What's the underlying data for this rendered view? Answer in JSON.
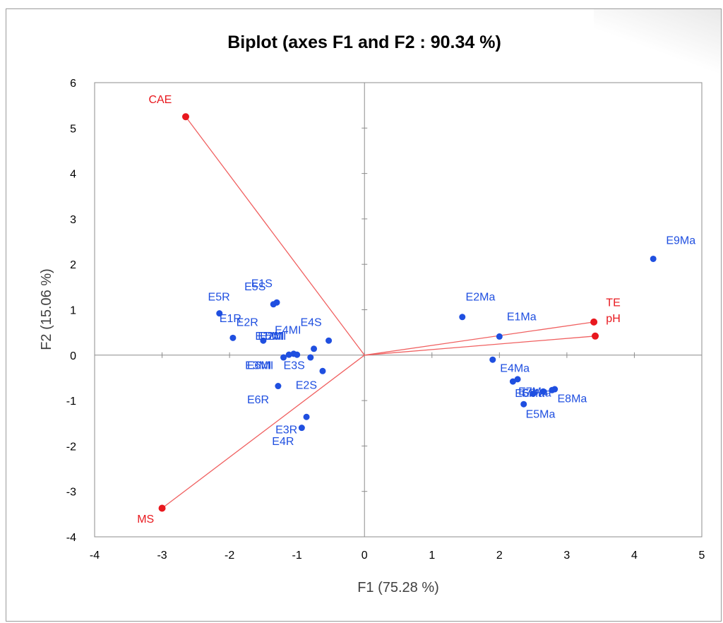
{
  "chart_data": {
    "type": "scatter",
    "title": "Biplot (axes F1 and F2 : 90.34 %)",
    "xlabel": "F1 (75.28 %)",
    "ylabel": "F2 (15.06 %)",
    "xlim": [
      -4,
      5
    ],
    "ylim": [
      -4,
      6
    ],
    "xticks": [
      "-4",
      "-3",
      "-2",
      "-1",
      "0",
      "1",
      "2",
      "3",
      "4",
      "5"
    ],
    "yticks": [
      "-4",
      "-3",
      "-2",
      "-1",
      "0",
      "1",
      "2",
      "3",
      "4",
      "5",
      "6"
    ],
    "grid": false,
    "colors": {
      "observations": "#1f4fe0",
      "variables": "#e8181e",
      "vectors": "#f06060",
      "axes": "#8c8c8c"
    },
    "variables": [
      {
        "label": "CAE",
        "x": -2.65,
        "y": 5.25
      },
      {
        "label": "MS",
        "x": -3.0,
        "y": -3.37
      },
      {
        "label": "TE",
        "x": 3.4,
        "y": 0.73
      },
      {
        "label": "pH",
        "x": 3.42,
        "y": 0.42
      }
    ],
    "observations": [
      {
        "label": "E9Ma",
        "x": 4.28,
        "y": 2.12
      },
      {
        "label": "E2Ma",
        "x": 1.45,
        "y": 0.84
      },
      {
        "label": "E1Ma",
        "x": 2.0,
        "y": 0.41
      },
      {
        "label": "E4Ma",
        "x": 2.2,
        "y": -0.58
      },
      {
        "label": "E8Ma",
        "x": 2.82,
        "y": -0.75
      },
      {
        "label": "E5Ma",
        "x": 2.36,
        "y": -1.08
      },
      {
        "label": "E6Ma",
        "x": 2.27,
        "y": -0.53
      },
      {
        "label": "E7Ma",
        "x": 2.5,
        "y": -0.85
      },
      {
        "label": "E3Ma",
        "x": 2.65,
        "y": -0.8
      },
      {
        "label": "",
        "x": 1.9,
        "y": -0.1
      },
      {
        "label": "",
        "x": 2.78,
        "y": -0.77
      },
      {
        "label": "E5R",
        "x": -2.15,
        "y": 0.92
      },
      {
        "label": "E1R",
        "x": -1.95,
        "y": 0.38
      },
      {
        "label": "E2R",
        "x": -1.5,
        "y": 0.32
      },
      {
        "label": "E1S",
        "x": -1.3,
        "y": 1.16
      },
      {
        "label": "E5S",
        "x": -1.35,
        "y": 1.12
      },
      {
        "label": "E4S",
        "x": -0.53,
        "y": 0.32
      },
      {
        "label": "E4MI",
        "x": -0.75,
        "y": 0.14
      },
      {
        "label": "E1MI",
        "x": -1.05,
        "y": 0.03
      },
      {
        "label": "E5MI",
        "x": -1.12,
        "y": 0.01
      },
      {
        "label": "E3MI",
        "x": -1.2,
        "y": -0.05
      },
      {
        "label": "E2MI",
        "x": -1.0,
        "y": 0.01
      },
      {
        "label": "E3S",
        "x": -0.8,
        "y": -0.05
      },
      {
        "label": "E2S",
        "x": -0.62,
        "y": -0.35
      },
      {
        "label": "E6R",
        "x": -1.28,
        "y": -0.68
      },
      {
        "label": "E3R",
        "x": -0.86,
        "y": -1.36
      },
      {
        "label": "E4R",
        "x": -0.93,
        "y": -1.6
      }
    ],
    "label_positions": [
      {
        "text": "E9Ma",
        "x": 4.47,
        "y": 2.45
      },
      {
        "text": "E2Ma",
        "x": 1.5,
        "y": 1.2
      },
      {
        "text": "E1Ma",
        "x": 2.11,
        "y": 0.77
      },
      {
        "text": "E4Ma",
        "x": 2.01,
        "y": -0.37
      },
      {
        "text": "E8Ma",
        "x": 2.86,
        "y": -1.04
      },
      {
        "text": "E5Ma",
        "x": 2.39,
        "y": -1.38
      },
      {
        "text": "E6Ma",
        "x": 2.23,
        "y": -0.92
      },
      {
        "text": "E7Ma",
        "x": 2.28,
        "y": -0.88
      },
      {
        "text": "E3Ma",
        "x": 2.33,
        "y": -0.91
      },
      {
        "text": "E5R",
        "x": -2.32,
        "y": 1.2
      },
      {
        "text": "E1R",
        "x": -2.15,
        "y": 0.73
      },
      {
        "text": "E2R",
        "x": -1.9,
        "y": 0.64
      },
      {
        "text": "E1S",
        "x": -1.68,
        "y": 1.5
      },
      {
        "text": "E5S",
        "x": -1.78,
        "y": 1.43
      },
      {
        "text": "E4S",
        "x": -0.95,
        "y": 0.64
      },
      {
        "text": "E4MI",
        "x": -1.33,
        "y": 0.47
      },
      {
        "text": "E1MI",
        "x": -1.62,
        "y": 0.34
      },
      {
        "text": "E5MI",
        "x": -1.58,
        "y": 0.34
      },
      {
        "text": "E2MI",
        "x": -1.55,
        "y": 0.34
      },
      {
        "text": "E3MI",
        "x": -1.77,
        "y": -0.31
      },
      {
        "text": "E6MI",
        "x": -1.74,
        "y": -0.31
      },
      {
        "text": "E3S",
        "x": -1.2,
        "y": -0.31
      },
      {
        "text": "E2S",
        "x": -1.02,
        "y": -0.74
      },
      {
        "text": "E6R",
        "x": -1.74,
        "y": -1.06
      },
      {
        "text": "E3R",
        "x": -1.32,
        "y": -1.72
      },
      {
        "text": "E4R",
        "x": -1.37,
        "y": -1.98
      }
    ],
    "var_label_positions": [
      {
        "text": "CAE",
        "x": -3.2,
        "y": 5.55
      },
      {
        "text": "MS",
        "x": -3.37,
        "y": -3.69
      },
      {
        "text": "TE",
        "x": 3.58,
        "y": 1.08
      },
      {
        "text": "pH",
        "x": 3.58,
        "y": 0.73
      }
    ]
  }
}
